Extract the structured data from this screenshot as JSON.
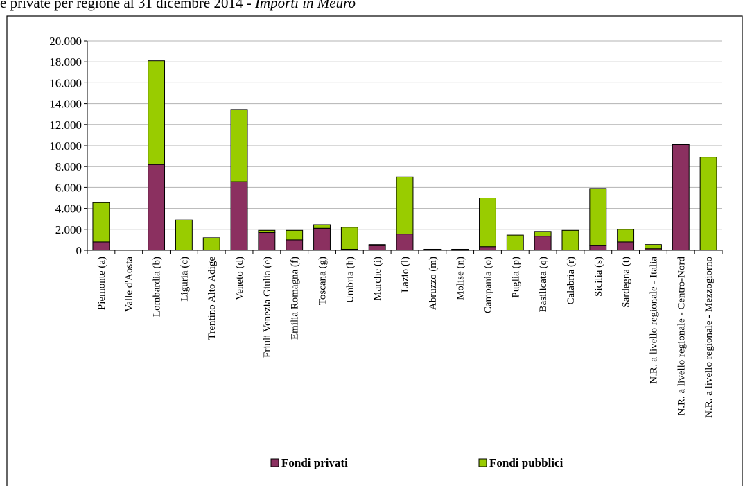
{
  "header": {
    "text_main": "e private per regione al 31 dicembre 2014 - ",
    "text_italic": "Importi in Meuro"
  },
  "chart_data": {
    "type": "bar",
    "stacked": true,
    "categories": [
      "Piemonte (a)",
      "Valle d'Aosta",
      "Lombardia (b)",
      "Liguria (c)",
      "Trentino Alto Adige",
      "Veneto (d)",
      "Friuli Venezia Giulia (e)",
      "Emilia Romagna (f)",
      "Toscana (g)",
      "Umbria (h)",
      "Marche (i)",
      "Lazio (l)",
      "Abruzzo (m)",
      "Molise (n)",
      "Campania (o)",
      "Puglia (p)",
      "Basilicata (q)",
      "Calabria (r)",
      "Sicilia  (s)",
      "Sardegna (t)",
      "N.R. a livello regionale - Italia",
      "N.R. a livello regionale - Centro-Nord",
      "N.R. a livello regionale - Mezzogiorno"
    ],
    "series": [
      {
        "name": "Fondi privati",
        "color": "#8b3060",
        "values": [
          800,
          0,
          8200,
          0,
          0,
          6550,
          1700,
          1000,
          2100,
          100,
          450,
          1550,
          50,
          40,
          350,
          0,
          1350,
          0,
          450,
          800,
          150,
          10100,
          0
        ]
      },
      {
        "name": "Fondi pubblici",
        "color": "#99cc00",
        "values": [
          3750,
          0,
          9900,
          2900,
          1200,
          6900,
          200,
          900,
          350,
          2100,
          100,
          5450,
          50,
          60,
          4650,
          1450,
          450,
          1900,
          5450,
          1200,
          400,
          0,
          8900
        ]
      }
    ],
    "ylim": [
      0,
      20000
    ],
    "yticks": [
      0,
      2000,
      4000,
      6000,
      8000,
      10000,
      12000,
      14000,
      16000,
      18000,
      20000
    ],
    "ytick_labels": [
      "0",
      "2.000",
      "4.000",
      "6.000",
      "8.000",
      "10.000",
      "12.000",
      "14.000",
      "16.000",
      "18.000",
      "20.000"
    ],
    "grid": true,
    "legend_position": "bottom"
  }
}
